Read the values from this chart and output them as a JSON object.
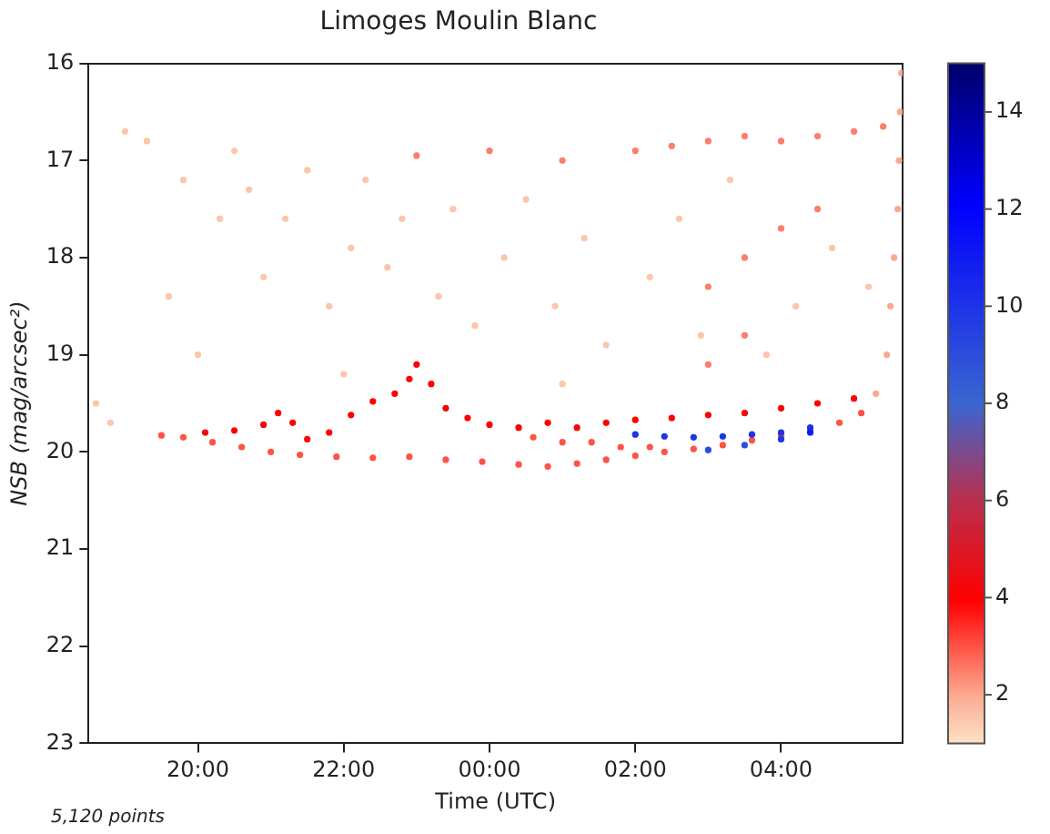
{
  "chart_data": {
    "type": "scatter",
    "title": "Limoges Moulin Blanc",
    "xlabel": "Time (UTC)",
    "ylabel": "NSB (mag/arcsec²)",
    "annotations": [
      "5,120 points"
    ],
    "x": [
      "--01-01T19:30",
      "--01-01T19:48",
      "--01-01T20:12",
      "--01-01T20:36",
      "--01-01T21:00",
      "--01-01T21:24",
      "--01-01T21:54",
      "--01-01T22:24",
      "--01-01T22:54",
      "--01-01T23:24",
      "--01-01T23:54",
      "--01-02T00:24",
      "--01-02T00:48",
      "--01-02T01:12",
      "--01-02T01:36",
      "--01-02T02:00",
      "--01-02T02:24",
      "--01-02T02:48",
      "--01-02T03:12",
      "--01-02T03:36",
      "--01-02T04:00",
      "--01-02T04:24",
      "--01-02T04:48",
      "--01-02T05:06",
      "--01-02T05:18",
      "--01-02T05:27",
      "--01-02T05:30",
      "--01-02T05:33",
      "--01-02T05:36",
      "--01-02T05:37",
      "--01-02T05:38",
      "--01-02T05:39",
      "--01-02T02:00",
      "--01-02T02:24",
      "--01-02T02:48",
      "--01-02T03:12",
      "--01-02T03:36",
      "--01-02T04:00",
      "--01-02T04:24",
      "--01-02T03:00",
      "--01-02T03:30",
      "--01-02T04:00",
      "--01-02T04:24",
      "--01-01T20:06",
      "--01-01T20:30",
      "--01-01T20:54",
      "--01-01T21:06",
      "--01-01T21:18",
      "--01-01T21:30",
      "--01-01T21:48",
      "--01-01T22:06",
      "--01-01T22:24",
      "--01-01T22:42",
      "--01-01T22:54",
      "--01-01T23:00",
      "--01-01T23:12",
      "--01-01T23:24",
      "--01-01T23:42",
      "--01-02T00:00",
      "--01-02T00:24",
      "--01-02T00:48",
      "--01-02T01:12",
      "--01-02T01:36",
      "--01-02T02:00",
      "--01-02T02:30",
      "--01-02T03:00",
      "--01-02T03:30",
      "--01-02T04:00",
      "--01-02T04:30",
      "--01-02T05:00",
      "--01-02T00:36",
      "--01-02T01:00",
      "--01-02T01:24",
      "--01-02T01:48",
      "--01-02T02:12",
      "--01-02T02:00",
      "--01-02T02:30",
      "--01-02T03:00",
      "--01-02T03:30",
      "--01-02T04:00",
      "--01-02T04:30",
      "--01-02T05:00",
      "--01-02T05:24",
      "--01-01T23:00",
      "--01-02T00:00",
      "--01-02T01:00",
      "--01-02T03:00",
      "--01-02T03:30",
      "--01-02T04:00",
      "--01-02T04:30",
      "--01-02T03:00",
      "--01-02T03:30",
      "--01-01T18:36",
      "--01-01T18:48",
      "--01-01T19:00",
      "--01-01T19:18",
      "--01-01T19:36",
      "--01-01T19:48",
      "--01-01T20:00",
      "--01-01T20:18",
      "--01-01T20:42",
      "--01-01T20:54",
      "--01-01T21:12",
      "--01-01T21:30",
      "--01-01T21:48",
      "--01-01T22:06",
      "--01-01T22:18",
      "--01-01T22:36",
      "--01-01T22:48",
      "--01-01T23:18",
      "--01-01T23:30",
      "--01-01T23:48",
      "--01-02T00:12",
      "--01-02T00:30",
      "--01-02T00:54",
      "--01-02T01:18",
      "--01-02T01:36",
      "--01-02T02:12",
      "--01-02T02:36",
      "--01-02T02:54",
      "--01-02T03:18",
      "--01-02T03:48",
      "--01-02T04:12",
      "--01-02T04:42",
      "--01-02T05:12",
      "--01-01T22:00",
      "--01-02T01:00",
      "--01-01T20:30"
    ],
    "values": [
      19.83,
      19.85,
      19.9,
      19.95,
      20.0,
      20.03,
      20.05,
      20.06,
      20.05,
      20.08,
      20.1,
      20.13,
      20.15,
      20.12,
      20.08,
      20.04,
      20.0,
      19.97,
      19.93,
      19.88,
      19.83,
      19.78,
      19.7,
      19.6,
      19.4,
      19.0,
      18.5,
      18.0,
      17.5,
      17.0,
      16.5,
      16.1,
      19.82,
      19.84,
      19.85,
      19.84,
      19.82,
      19.8,
      19.75,
      19.98,
      19.93,
      19.87,
      19.8,
      19.8,
      19.78,
      19.72,
      19.6,
      19.7,
      19.87,
      19.8,
      19.62,
      19.48,
      19.4,
      19.25,
      19.1,
      19.3,
      19.55,
      19.65,
      19.72,
      19.75,
      19.7,
      19.75,
      19.7,
      19.67,
      19.65,
      19.62,
      19.6,
      19.55,
      19.5,
      19.45,
      19.85,
      19.9,
      19.9,
      19.95,
      19.95,
      16.9,
      16.85,
      16.8,
      16.75,
      16.8,
      16.75,
      16.7,
      16.65,
      16.95,
      16.9,
      17.0,
      18.3,
      18.0,
      17.7,
      17.5,
      19.1,
      18.8,
      19.5,
      19.7,
      16.7,
      16.8,
      18.4,
      17.2,
      19.0,
      17.6,
      17.3,
      18.2,
      17.6,
      17.1,
      18.5,
      17.9,
      17.2,
      18.1,
      17.6,
      18.4,
      17.5,
      18.7,
      18.0,
      17.4,
      18.5,
      17.8,
      18.9,
      18.2,
      17.6,
      18.8,
      17.2,
      19.0,
      18.5,
      17.9,
      18.3,
      19.2,
      19.3,
      16.9
    ],
    "cvalues": [
      3,
      3,
      3,
      3,
      3,
      3,
      3,
      3,
      3,
      3,
      3,
      3,
      3,
      3,
      3,
      3,
      3,
      3,
      3,
      3,
      3,
      3,
      3,
      3,
      2,
      2,
      2,
      2,
      2,
      2,
      2,
      2,
      10,
      10,
      10,
      10,
      10,
      10,
      10,
      9,
      9,
      10,
      11,
      4,
      4,
      4,
      4,
      4,
      4,
      4,
      4,
      4,
      4,
      4,
      4,
      4,
      4,
      4,
      4,
      4,
      4,
      4,
      4,
      4,
      4,
      4,
      4,
      4,
      4,
      4,
      3,
      3,
      3,
      3,
      3,
      2.5,
      2.5,
      2.5,
      2.5,
      2.5,
      2.5,
      2.5,
      2.5,
      2.5,
      2.5,
      2.5,
      2.5,
      2.5,
      2.5,
      2.5,
      2.5,
      2.5,
      1.5,
      1.5,
      1.5,
      1.5,
      1.5,
      1.5,
      1.5,
      1.5,
      1.5,
      1.5,
      1.5,
      1.5,
      1.5,
      1.5,
      1.5,
      1.5,
      1.5,
      1.5,
      1.5,
      1.5,
      1.5,
      1.5,
      1.5,
      1.5,
      1.5,
      1.5,
      1.5,
      1.5,
      1.5,
      1.5,
      1.5,
      1.5,
      1.5,
      1.5,
      1.5,
      1.5
    ],
    "xlim": [
      "--01-01T18:30",
      "--01-02T05:40"
    ],
    "xticks": [
      {
        "value": "--01-01T20:00",
        "label": "20:00"
      },
      {
        "value": "--01-01T22:00",
        "label": "22:00"
      },
      {
        "value": "--01-02T00:00",
        "label": "00:00"
      },
      {
        "value": "--01-02T02:00",
        "label": "02:00"
      },
      {
        "value": "--01-02T04:00",
        "label": "04:00"
      }
    ],
    "ylim": [
      23,
      16
    ],
    "yticks": [
      16,
      17,
      18,
      19,
      20,
      21,
      22,
      23
    ],
    "clim": [
      1,
      15
    ],
    "cticks": [
      2,
      4,
      6,
      8,
      10,
      12,
      14
    ],
    "marker": "circle",
    "grid": false,
    "legend": false
  }
}
